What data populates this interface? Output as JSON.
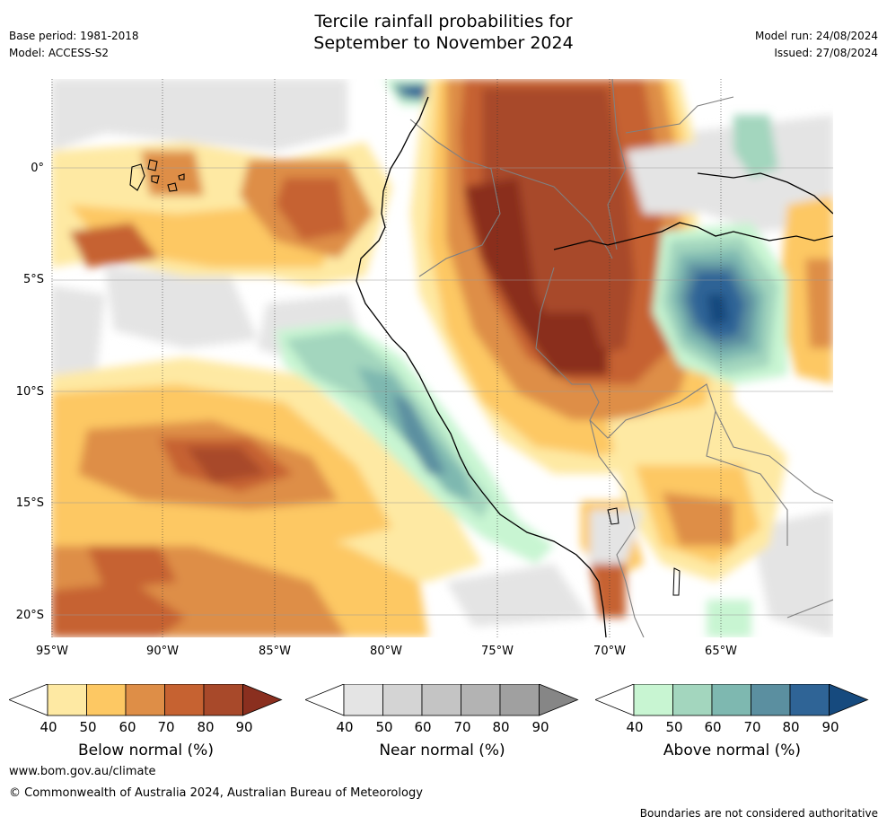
{
  "header": {
    "title_line1": "Tercile rainfall probabilities for",
    "title_line2": "September to November 2024",
    "base_period": "Base period: 1981-2018",
    "model": "Model: ACCESS-S2",
    "model_run": "Model run: 24/08/2024",
    "issued": "Issued: 27/08/2024"
  },
  "map": {
    "lat_labels": [
      "0°",
      "5°S",
      "10°S",
      "15°S",
      "20°S"
    ],
    "lon_labels": [
      "95°W",
      "90°W",
      "85°W",
      "80°W",
      "75°W",
      "70°W",
      "65°W"
    ],
    "regions_shown": [
      "Galapagos Islands",
      "Ecuador",
      "Peru",
      "Colombia",
      "Brazil",
      "Bolivia",
      "Chile"
    ]
  },
  "legend": {
    "ticks": [
      "40",
      "50",
      "60",
      "70",
      "80",
      "90"
    ],
    "bars": [
      {
        "title": "Below normal (%)",
        "colors": [
          "#fee9a3",
          "#fdc863",
          "#de8e47",
          "#c66231",
          "#a8492a",
          "#8a2f1f"
        ]
      },
      {
        "title": "Near normal (%)",
        "colors": [
          "#e4e4e4",
          "#d4d4d4",
          "#c4c4c4",
          "#b3b3b3",
          "#a0a0a0",
          "#868686"
        ]
      },
      {
        "title": "Above normal (%)",
        "colors": [
          "#c8f5d2",
          "#a3d6be",
          "#7eb8b0",
          "#5b8fa0",
          "#2f6496",
          "#164a7e"
        ]
      }
    ]
  },
  "footer": {
    "website": "www.bom.gov.au/climate",
    "copyright": "© Commonwealth of Australia 2024, Australian Bureau of Meteorology",
    "disclaimer": "Boundaries are not considered authoritative"
  }
}
